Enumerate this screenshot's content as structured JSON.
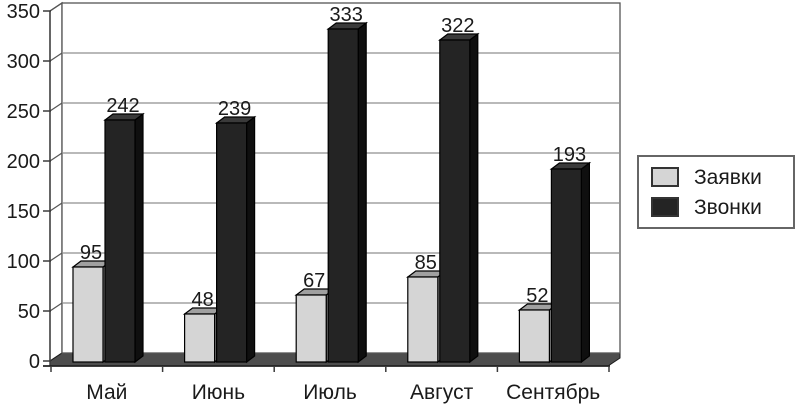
{
  "chart_data": {
    "type": "bar",
    "style": "3d-column",
    "title": "",
    "categories": [
      "Май",
      "Июнь",
      "Июль",
      "Август",
      "Сентябрь"
    ],
    "series": [
      {
        "name": "Заявки",
        "values": [
          95,
          48,
          67,
          85,
          52
        ],
        "color": "#d5d5d5",
        "top_color": "#a0a0a0",
        "side_color": "#8a8a8a"
      },
      {
        "name": "Звонки",
        "values": [
          242,
          239,
          333,
          322,
          193
        ],
        "color": "#242424",
        "top_color": "#3a3a3a",
        "side_color": "#0f0f0f"
      }
    ],
    "yticks": [
      0,
      50,
      100,
      150,
      200,
      250,
      300,
      350
    ],
    "ylim": [
      0,
      350
    ],
    "ytick_step": 50,
    "grid": true,
    "data_labels": true,
    "legend_position": "right"
  },
  "colors": {
    "background": "#ffffff",
    "grid": "#8f8f8f",
    "wall_border": "#555555",
    "axis": "#3a3a3a",
    "baseline": "#222222",
    "floor": "#4d4d4d",
    "text": "#1a1a1a",
    "legend_border": "#666666"
  }
}
